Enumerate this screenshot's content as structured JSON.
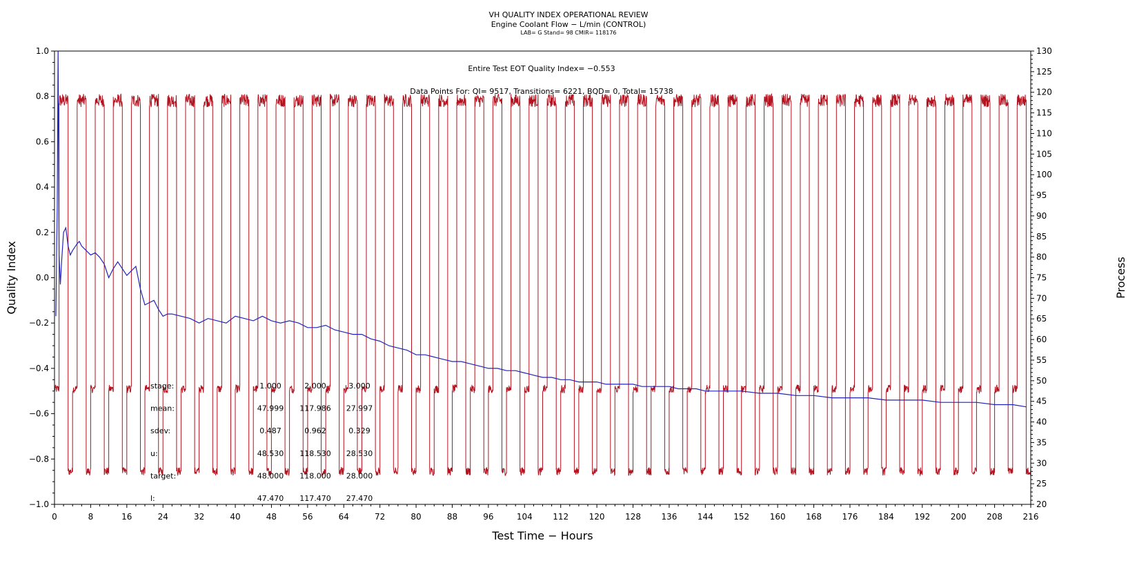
{
  "chart_data": {
    "type": "line",
    "title": "VH QUALITY INDEX OPERATIONAL REVIEW",
    "subtitle": "Engine Coolant Flow − L/min (CONTROL)",
    "subtitle2": "LAB= G Stand= 98 CMIR= 118176",
    "xlabel": "Test Time − Hours",
    "ylabel": "Quality Index",
    "y2label": "Process",
    "xlim": [
      0,
      216
    ],
    "ylim": [
      -1.0,
      1.0
    ],
    "y2lim": [
      20,
      130
    ],
    "xticks": [
      0,
      8,
      16,
      24,
      32,
      40,
      48,
      56,
      64,
      72,
      80,
      88,
      96,
      104,
      112,
      120,
      128,
      136,
      144,
      152,
      160,
      168,
      176,
      184,
      192,
      200,
      208,
      216
    ],
    "yticks": [
      "1.0",
      "0.8",
      "0.6",
      "0.4",
      "0.2",
      "0.0",
      "−0.2",
      "−0.4",
      "−0.6",
      "−0.8",
      "−1.0"
    ],
    "y2ticks": [
      20,
      25,
      30,
      35,
      40,
      45,
      50,
      55,
      60,
      65,
      70,
      75,
      80,
      85,
      90,
      95,
      100,
      105,
      110,
      115,
      120,
      125,
      130
    ],
    "annotations": {
      "eot": "Entire Test EOT Quality Index=  −0.553",
      "points": "Data Points For: QI=  9517, Transitions=  6221, BQD=     0, Total=  15738"
    },
    "stats_table": {
      "rows": [
        {
          "label": "stage:",
          "values": [
            "1.000",
            "2.000",
            "3.000"
          ]
        },
        {
          "label": "mean:",
          "values": [
            "47.999",
            "117.986",
            "27.997"
          ]
        },
        {
          "label": "sdev:",
          "values": [
            "0.487",
            "0.962",
            "0.329"
          ]
        },
        {
          "label": "u:",
          "values": [
            "48.530",
            "118.530",
            "28.530"
          ]
        },
        {
          "label": "target:",
          "values": [
            "48.000",
            "118.000",
            "28.000"
          ]
        },
        {
          "label": "l:",
          "values": [
            "47.470",
            "117.470",
            "27.470"
          ]
        }
      ]
    },
    "series": [
      {
        "axis": "left",
        "color": "#2222bb",
        "points": [
          [
            0.3,
            -0.17
          ],
          [
            0.6,
            0.3
          ],
          [
            0.8,
            1.0
          ],
          [
            1.0,
            0.1
          ],
          [
            1.3,
            -0.03
          ],
          [
            1.6,
            0.08
          ],
          [
            2.0,
            0.2
          ],
          [
            2.5,
            0.22
          ],
          [
            3,
            0.14
          ],
          [
            3.5,
            0.1
          ],
          [
            4,
            0.12
          ],
          [
            5,
            0.15
          ],
          [
            5.5,
            0.16
          ],
          [
            6,
            0.14
          ],
          [
            7,
            0.12
          ],
          [
            8,
            0.1
          ],
          [
            9,
            0.11
          ],
          [
            10,
            0.09
          ],
          [
            11,
            0.06
          ],
          [
            12,
            0.0
          ],
          [
            13,
            0.04
          ],
          [
            14,
            0.07
          ],
          [
            15,
            0.04
          ],
          [
            16,
            0.01
          ],
          [
            17,
            0.03
          ],
          [
            18,
            0.05
          ],
          [
            19,
            -0.05
          ],
          [
            20,
            -0.12
          ],
          [
            21,
            -0.11
          ],
          [
            22,
            -0.1
          ],
          [
            23,
            -0.14
          ],
          [
            24,
            -0.17
          ],
          [
            25,
            -0.16
          ],
          [
            26,
            -0.16
          ],
          [
            28,
            -0.17
          ],
          [
            30,
            -0.18
          ],
          [
            32,
            -0.2
          ],
          [
            34,
            -0.18
          ],
          [
            36,
            -0.19
          ],
          [
            38,
            -0.2
          ],
          [
            40,
            -0.17
          ],
          [
            42,
            -0.18
          ],
          [
            44,
            -0.19
          ],
          [
            46,
            -0.17
          ],
          [
            48,
            -0.19
          ],
          [
            50,
            -0.2
          ],
          [
            52,
            -0.19
          ],
          [
            54,
            -0.2
          ],
          [
            56,
            -0.22
          ],
          [
            58,
            -0.22
          ],
          [
            60,
            -0.21
          ],
          [
            62,
            -0.23
          ],
          [
            64,
            -0.24
          ],
          [
            66,
            -0.25
          ],
          [
            68,
            -0.25
          ],
          [
            70,
            -0.27
          ],
          [
            72,
            -0.28
          ],
          [
            74,
            -0.3
          ],
          [
            76,
            -0.31
          ],
          [
            78,
            -0.32
          ],
          [
            80,
            -0.34
          ],
          [
            82,
            -0.34
          ],
          [
            84,
            -0.35
          ],
          [
            86,
            -0.36
          ],
          [
            88,
            -0.37
          ],
          [
            90,
            -0.37
          ],
          [
            92,
            -0.38
          ],
          [
            94,
            -0.39
          ],
          [
            96,
            -0.4
          ],
          [
            98,
            -0.4
          ],
          [
            100,
            -0.41
          ],
          [
            102,
            -0.41
          ],
          [
            104,
            -0.42
          ],
          [
            106,
            -0.43
          ],
          [
            108,
            -0.44
          ],
          [
            110,
            -0.44
          ],
          [
            112,
            -0.45
          ],
          [
            114,
            -0.45
          ],
          [
            116,
            -0.46
          ],
          [
            118,
            -0.46
          ],
          [
            120,
            -0.46
          ],
          [
            122,
            -0.47
          ],
          [
            124,
            -0.47
          ],
          [
            126,
            -0.47
          ],
          [
            128,
            -0.47
          ],
          [
            130,
            -0.48
          ],
          [
            132,
            -0.48
          ],
          [
            134,
            -0.48
          ],
          [
            136,
            -0.48
          ],
          [
            138,
            -0.49
          ],
          [
            140,
            -0.49
          ],
          [
            142,
            -0.49
          ],
          [
            144,
            -0.5
          ],
          [
            146,
            -0.5
          ],
          [
            148,
            -0.5
          ],
          [
            150,
            -0.5
          ],
          [
            152,
            -0.5
          ],
          [
            156,
            -0.51
          ],
          [
            160,
            -0.51
          ],
          [
            164,
            -0.52
          ],
          [
            168,
            -0.52
          ],
          [
            172,
            -0.53
          ],
          [
            176,
            -0.53
          ],
          [
            180,
            -0.53
          ],
          [
            184,
            -0.54
          ],
          [
            188,
            -0.54
          ],
          [
            192,
            -0.54
          ],
          [
            196,
            -0.55
          ],
          [
            200,
            -0.55
          ],
          [
            204,
            -0.55
          ],
          [
            208,
            -0.56
          ],
          [
            212,
            -0.56
          ],
          [
            215,
            -0.57
          ]
        ]
      },
      {
        "axis": "right",
        "color": "#b3121f",
        "cycle_hours": 4,
        "segments": [
          {
            "hours": 1.0,
            "value": 48
          },
          {
            "hours": 2.0,
            "value": 118
          },
          {
            "hours": 1.0,
            "value": 28
          }
        ]
      }
    ]
  }
}
